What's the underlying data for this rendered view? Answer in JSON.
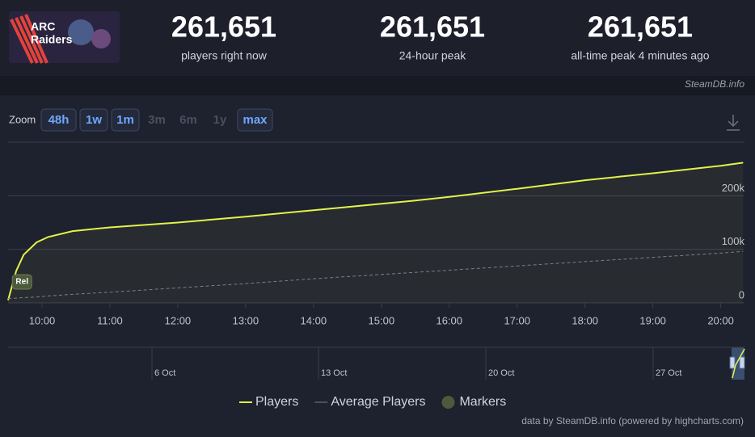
{
  "header": {
    "logo_text": [
      "ARC",
      "Raiders"
    ],
    "stats": [
      {
        "value": "261,651",
        "label": "players right now"
      },
      {
        "value": "261,651",
        "label": "24-hour peak"
      },
      {
        "value": "261,651",
        "label": "all-time peak 4 minutes ago"
      }
    ],
    "source": "SteamDB.info"
  },
  "zoom": {
    "label": "Zoom",
    "buttons": [
      {
        "label": "48h",
        "enabled": true
      },
      {
        "label": "1w",
        "enabled": true
      },
      {
        "label": "1m",
        "enabled": true
      },
      {
        "label": "3m",
        "enabled": false
      },
      {
        "label": "6m",
        "enabled": false
      },
      {
        "label": "1y",
        "enabled": false
      },
      {
        "label": "max",
        "enabled": true
      }
    ]
  },
  "chart_data": {
    "type": "line",
    "x": [
      9.5,
      9.62,
      9.73,
      9.92,
      10.09,
      10.45,
      11,
      12,
      13,
      14,
      15,
      15.5,
      16,
      17,
      18,
      19,
      20,
      20.33
    ],
    "xlim": [
      9.5,
      20.35
    ],
    "xticks": [
      {
        "value": 10,
        "label": "10:00"
      },
      {
        "value": 11,
        "label": "11:00"
      },
      {
        "value": 12,
        "label": "12:00"
      },
      {
        "value": 13,
        "label": "13:00"
      },
      {
        "value": 14,
        "label": "14:00"
      },
      {
        "value": 15,
        "label": "15:00"
      },
      {
        "value": 16,
        "label": "16:00"
      },
      {
        "value": 17,
        "label": "17:00"
      },
      {
        "value": 18,
        "label": "18:00"
      },
      {
        "value": 19,
        "label": "19:00"
      },
      {
        "value": 20,
        "label": "20:00"
      }
    ],
    "ylim": [
      0,
      300000
    ],
    "yticks": [
      0,
      {
        "value": 100000,
        "label": "100k"
      },
      {
        "value": 200000,
        "label": "200k"
      }
    ],
    "grid": true,
    "series": [
      {
        "name": "Players",
        "color": "#e2f34a",
        "style": "solid",
        "values": [
          5000,
          60000,
          90000,
          113000,
          123000,
          134000,
          141000,
          150000,
          161000,
          173000,
          185000,
          191000,
          198000,
          213000,
          229000,
          242000,
          256000,
          261651
        ]
      },
      {
        "name": "Average Players",
        "color": "#7a7f8c",
        "style": "dashed",
        "values": [
          8000,
          9000,
          10000,
          11000,
          13000,
          16000,
          20000,
          28000,
          36000,
          45000,
          53000,
          57000,
          61000,
          69000,
          77000,
          85000,
          93000,
          96000
        ]
      }
    ],
    "markers_name": "Markers",
    "markers": [
      {
        "x": 9.55,
        "label": "Rel"
      }
    ],
    "navigator_ticks": [
      "6 Oct",
      "13 Oct",
      "20 Oct",
      "27 Oct"
    ],
    "credit": "data by SteamDB.info (powered by highcharts.com)"
  }
}
